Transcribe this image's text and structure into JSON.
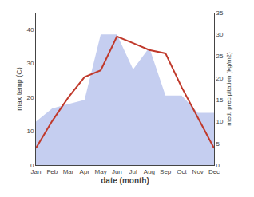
{
  "chart_data": {
    "type": "line",
    "categories": [
      "Jan",
      "Feb",
      "Mar",
      "Apr",
      "May",
      "Jun",
      "Jul",
      "Aug",
      "Sep",
      "Oct",
      "Nov",
      "Dec"
    ],
    "series": [
      {
        "type": "area",
        "axis": "y2",
        "color": "#c5cef0",
        "values": [
          10,
          13,
          14,
          15,
          30,
          30,
          22,
          27,
          16,
          16,
          12,
          12
        ]
      },
      {
        "type": "line",
        "color": "#c0392b",
        "values": [
          5,
          13,
          20,
          26,
          28,
          38,
          36,
          34,
          33,
          23,
          14,
          5
        ]
      }
    ],
    "xlabel": "date (month)",
    "ylabel": "max temp (C)",
    "y2label": "med. precipitation (kg/m2)",
    "ylim": [
      0,
      45
    ],
    "yticks": [
      0,
      10,
      20,
      30,
      40
    ],
    "y2lim": [
      0,
      35
    ],
    "y2ticks": [
      0,
      5,
      10,
      15,
      20,
      25,
      30,
      35
    ],
    "grid": false
  }
}
